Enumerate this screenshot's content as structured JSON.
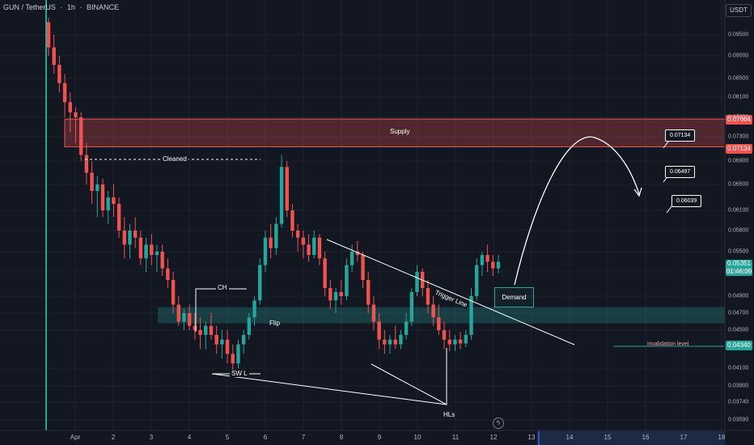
{
  "header": {
    "symbol": "GUN / TetherUS",
    "interval": "1h",
    "exchange": "BINANCE",
    "currency_badge": "USDT"
  },
  "colors": {
    "background": "#131722",
    "up": "#26a69a",
    "down": "#ef5350",
    "supply_zone": "#ef5350",
    "flip_zone": "#26a69a",
    "drawing": "#ffffff",
    "vertical_marker": "#26a69a"
  },
  "chart_data": {
    "type": "candlestick",
    "xlabel": "",
    "ylabel": "",
    "x_ticks": [
      "Apr",
      "2",
      "3",
      "4",
      "5",
      "6",
      "7",
      "8",
      "9",
      "10",
      "11",
      "12",
      "13",
      "14",
      "15",
      "16",
      "17",
      "18"
    ],
    "y_ticks": [
      "0.09500",
      "0.09000",
      "0.08500",
      "0.08100",
      "0.07700",
      "0.07300",
      "0.06900",
      "0.06500",
      "0.06100",
      "0.05800",
      "0.05500",
      "0.05200",
      "0.04900",
      "0.04700",
      "0.04500",
      "0.04100",
      "0.03900",
      "0.03740",
      "0.03590"
    ],
    "ylim": [
      0.0353,
      0.0997
    ],
    "price_tags": {
      "supply_top": "0.07664",
      "supply_bottom": "0.07134",
      "last_price": "0.05351",
      "countdown": "01:46:09",
      "invalidation": "0.04340"
    },
    "zones": [
      {
        "name": "Supply",
        "top": 0.07664,
        "bottom": 0.07134
      },
      {
        "name": "Flip",
        "top": 0.0477,
        "bottom": 0.0458
      }
    ],
    "annotations": {
      "cleaned": "Cleaned",
      "ch": "CH",
      "swl": "SW L",
      "hls": "HLs",
      "trigger_line": "Trigger Line",
      "demand": "Demand",
      "invalidation": "invalidation level",
      "target1": "0.07134",
      "target2": "0.06497",
      "target3": "0.06039"
    },
    "series": [
      {
        "values": [
          [
            0.098,
            0.099,
            0.09,
            0.092
          ],
          [
            0.092,
            0.095,
            0.086,
            0.088
          ],
          [
            0.088,
            0.09,
            0.082,
            0.084
          ],
          [
            0.084,
            0.086,
            0.077,
            0.08
          ],
          [
            0.08,
            0.082,
            0.074,
            0.078
          ],
          [
            0.078,
            0.079,
            0.072,
            0.077
          ],
          [
            0.077,
            0.078,
            0.069,
            0.07
          ],
          [
            0.07,
            0.072,
            0.065,
            0.067
          ],
          [
            0.067,
            0.069,
            0.062,
            0.064
          ],
          [
            0.064,
            0.0665,
            0.06,
            0.065
          ],
          [
            0.065,
            0.066,
            0.06,
            0.061
          ],
          [
            0.061,
            0.064,
            0.059,
            0.063
          ],
          [
            0.063,
            0.065,
            0.06,
            0.062
          ],
          [
            0.062,
            0.063,
            0.057,
            0.058
          ],
          [
            0.058,
            0.06,
            0.054,
            0.056
          ],
          [
            0.056,
            0.059,
            0.054,
            0.058
          ],
          [
            0.058,
            0.06,
            0.0555,
            0.057
          ],
          [
            0.057,
            0.058,
            0.053,
            0.054
          ],
          [
            0.054,
            0.057,
            0.052,
            0.056
          ],
          [
            0.056,
            0.0575,
            0.053,
            0.0545
          ],
          [
            0.0545,
            0.056,
            0.052,
            0.055
          ],
          [
            0.055,
            0.056,
            0.0515,
            0.0525
          ],
          [
            0.0525,
            0.054,
            0.05,
            0.051
          ],
          [
            0.051,
            0.052,
            0.047,
            0.048
          ],
          [
            0.048,
            0.049,
            0.0455,
            0.046
          ],
          [
            0.046,
            0.0475,
            0.045,
            0.047
          ],
          [
            0.047,
            0.048,
            0.045,
            0.0455
          ],
          [
            0.0455,
            0.047,
            0.044,
            0.045
          ],
          [
            0.045,
            0.0465,
            0.043,
            0.0445
          ],
          [
            0.0445,
            0.046,
            0.043,
            0.0455
          ],
          [
            0.0455,
            0.047,
            0.044,
            0.0445
          ],
          [
            0.0445,
            0.0455,
            0.0425,
            0.0435
          ],
          [
            0.0435,
            0.045,
            0.042,
            0.044
          ],
          [
            0.044,
            0.045,
            0.0415,
            0.0425
          ],
          [
            0.0425,
            0.0435,
            0.0408,
            0.0415
          ],
          [
            0.0415,
            0.044,
            0.041,
            0.0435
          ],
          [
            0.0435,
            0.045,
            0.0425,
            0.0445
          ],
          [
            0.0445,
            0.047,
            0.044,
            0.0465
          ],
          [
            0.0465,
            0.049,
            0.0455,
            0.0485
          ],
          [
            0.0485,
            0.054,
            0.048,
            0.053
          ],
          [
            0.053,
            0.058,
            0.052,
            0.057
          ],
          [
            0.057,
            0.059,
            0.054,
            0.0555
          ],
          [
            0.0555,
            0.06,
            0.0545,
            0.059
          ],
          [
            0.059,
            0.07,
            0.0585,
            0.068
          ],
          [
            0.068,
            0.069,
            0.06,
            0.061
          ],
          [
            0.061,
            0.062,
            0.057,
            0.058
          ],
          [
            0.058,
            0.059,
            0.055,
            0.057
          ],
          [
            0.057,
            0.058,
            0.054,
            0.056
          ],
          [
            0.056,
            0.0575,
            0.0535,
            0.0545
          ],
          [
            0.0545,
            0.058,
            0.054,
            0.057
          ],
          [
            0.057,
            0.0575,
            0.053,
            0.054
          ],
          [
            0.054,
            0.055,
            0.049,
            0.05
          ],
          [
            0.05,
            0.051,
            0.0475,
            0.0485
          ],
          [
            0.0485,
            0.05,
            0.047,
            0.0495
          ],
          [
            0.0495,
            0.051,
            0.048,
            0.049
          ],
          [
            0.049,
            0.054,
            0.0485,
            0.053
          ],
          [
            0.053,
            0.056,
            0.052,
            0.055
          ],
          [
            0.055,
            0.0565,
            0.0535,
            0.0545
          ],
          [
            0.0545,
            0.055,
            0.05,
            0.051
          ],
          [
            0.051,
            0.052,
            0.047,
            0.048
          ],
          [
            0.048,
            0.049,
            0.045,
            0.046
          ],
          [
            0.046,
            0.047,
            0.043,
            0.044
          ],
          [
            0.044,
            0.045,
            0.0425,
            0.0435
          ],
          [
            0.0435,
            0.0445,
            0.0425,
            0.044
          ],
          [
            0.044,
            0.0455,
            0.043,
            0.0435
          ],
          [
            0.0435,
            0.045,
            0.043,
            0.0445
          ],
          [
            0.0445,
            0.047,
            0.044,
            0.046
          ],
          [
            0.046,
            0.05,
            0.0455,
            0.0495
          ],
          [
            0.0495,
            0.053,
            0.049,
            0.052
          ],
          [
            0.052,
            0.0525,
            0.049,
            0.05
          ],
          [
            0.05,
            0.051,
            0.047,
            0.048
          ],
          [
            0.048,
            0.049,
            0.0455,
            0.0465
          ],
          [
            0.0465,
            0.048,
            0.0445,
            0.045
          ],
          [
            0.045,
            0.046,
            0.043,
            0.044
          ],
          [
            0.044,
            0.045,
            0.0428,
            0.0435
          ],
          [
            0.0435,
            0.0445,
            0.0428,
            0.044
          ],
          [
            0.044,
            0.0448,
            0.043,
            0.0436
          ],
          [
            0.0436,
            0.045,
            0.0432,
            0.0445
          ],
          [
            0.0445,
            0.05,
            0.044,
            0.049
          ],
          [
            0.049,
            0.054,
            0.0485,
            0.053
          ],
          [
            0.053,
            0.055,
            0.0515,
            0.0545
          ],
          [
            0.0545,
            0.056,
            0.052,
            0.0535
          ],
          [
            0.0535,
            0.0545,
            0.0515,
            0.0525
          ],
          [
            0.0525,
            0.0545,
            0.0518,
            0.0535
          ]
        ]
      }
    ]
  }
}
